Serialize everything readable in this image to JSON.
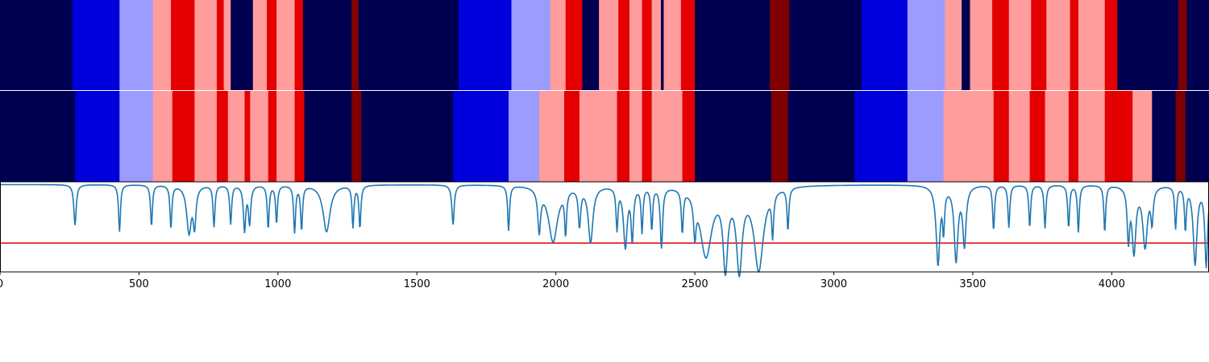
{
  "figure": {
    "x_range": [
      0,
      4350
    ],
    "xticks": [
      0,
      500,
      1000,
      1500,
      2000,
      2500,
      3000,
      3500,
      4000
    ],
    "xtick_labels": [
      "0",
      "500",
      "1000",
      "1500",
      "2000",
      "2500",
      "3000",
      "3500",
      "4000"
    ]
  },
  "colors": {
    "navy": "#000050",
    "blue": "#0000dc",
    "lightblue": "#9c9cff",
    "pink": "#ff9c9c",
    "red": "#e40000",
    "darkred": "#800000",
    "curve": "#1f77b4",
    "threshold": "#e00000"
  },
  "chart_data": [
    {
      "type": "heatmap",
      "x_range": [
        0,
        4350
      ],
      "segments": [
        [
          0,
          260,
          "navy"
        ],
        [
          260,
          430,
          "blue"
        ],
        [
          430,
          550,
          "lightblue"
        ],
        [
          550,
          615,
          "pink"
        ],
        [
          615,
          700,
          "red"
        ],
        [
          700,
          780,
          "pink"
        ],
        [
          780,
          805,
          "red"
        ],
        [
          805,
          830,
          "pink"
        ],
        [
          830,
          910,
          "navy"
        ],
        [
          910,
          960,
          "pink"
        ],
        [
          960,
          995,
          "red"
        ],
        [
          995,
          1060,
          "pink"
        ],
        [
          1060,
          1090,
          "red"
        ],
        [
          1090,
          1265,
          "navy"
        ],
        [
          1265,
          1290,
          "darkred"
        ],
        [
          1290,
          1650,
          "navy"
        ],
        [
          1650,
          1840,
          "blue"
        ],
        [
          1840,
          1980,
          "lightblue"
        ],
        [
          1980,
          2035,
          "pink"
        ],
        [
          2035,
          2095,
          "red"
        ],
        [
          2095,
          2155,
          "navy"
        ],
        [
          2155,
          2225,
          "pink"
        ],
        [
          2225,
          2265,
          "red"
        ],
        [
          2265,
          2310,
          "pink"
        ],
        [
          2310,
          2345,
          "red"
        ],
        [
          2345,
          2378,
          "pink"
        ],
        [
          2378,
          2388,
          "navy"
        ],
        [
          2388,
          2398,
          "pink"
        ],
        [
          2398,
          2450,
          "pink"
        ],
        [
          2450,
          2500,
          "red"
        ],
        [
          2500,
          2770,
          "navy"
        ],
        [
          2770,
          2840,
          "darkred"
        ],
        [
          2840,
          3100,
          "navy"
        ],
        [
          3100,
          3265,
          "blue"
        ],
        [
          3265,
          3400,
          "lightblue"
        ],
        [
          3400,
          3460,
          "pink"
        ],
        [
          3460,
          3490,
          "navy"
        ],
        [
          3490,
          3570,
          "pink"
        ],
        [
          3570,
          3630,
          "red"
        ],
        [
          3630,
          3710,
          "pink"
        ],
        [
          3710,
          3765,
          "red"
        ],
        [
          3765,
          3850,
          "pink"
        ],
        [
          3850,
          3880,
          "red"
        ],
        [
          3880,
          3975,
          "pink"
        ],
        [
          3975,
          4020,
          "red"
        ],
        [
          4020,
          4240,
          "navy"
        ],
        [
          4240,
          4270,
          "darkred"
        ],
        [
          4270,
          4350,
          "navy"
        ]
      ]
    },
    {
      "type": "heatmap",
      "x_range": [
        0,
        4350
      ],
      "segments": [
        [
          0,
          270,
          "navy"
        ],
        [
          270,
          430,
          "blue"
        ],
        [
          430,
          550,
          "lightblue"
        ],
        [
          550,
          620,
          "pink"
        ],
        [
          620,
          700,
          "red"
        ],
        [
          700,
          780,
          "pink"
        ],
        [
          780,
          820,
          "red"
        ],
        [
          820,
          880,
          "pink"
        ],
        [
          880,
          900,
          "red"
        ],
        [
          900,
          965,
          "pink"
        ],
        [
          965,
          995,
          "red"
        ],
        [
          995,
          1060,
          "pink"
        ],
        [
          1060,
          1095,
          "red"
        ],
        [
          1095,
          1265,
          "navy"
        ],
        [
          1265,
          1300,
          "darkred"
        ],
        [
          1300,
          1630,
          "navy"
        ],
        [
          1630,
          1830,
          "blue"
        ],
        [
          1830,
          1940,
          "lightblue"
        ],
        [
          1940,
          2030,
          "pink"
        ],
        [
          2030,
          2085,
          "red"
        ],
        [
          2085,
          2220,
          "pink"
        ],
        [
          2220,
          2265,
          "red"
        ],
        [
          2265,
          2310,
          "pink"
        ],
        [
          2310,
          2345,
          "red"
        ],
        [
          2345,
          2455,
          "pink"
        ],
        [
          2455,
          2500,
          "red"
        ],
        [
          2500,
          2775,
          "navy"
        ],
        [
          2775,
          2835,
          "darkred"
        ],
        [
          2835,
          3075,
          "navy"
        ],
        [
          3075,
          3265,
          "blue"
        ],
        [
          3265,
          3395,
          "lightblue"
        ],
        [
          3395,
          3575,
          "pink"
        ],
        [
          3575,
          3630,
          "red"
        ],
        [
          3630,
          3705,
          "pink"
        ],
        [
          3705,
          3760,
          "red"
        ],
        [
          3760,
          3845,
          "pink"
        ],
        [
          3845,
          3880,
          "red"
        ],
        [
          3880,
          3975,
          "pink"
        ],
        [
          3975,
          4075,
          "red"
        ],
        [
          4075,
          4145,
          "pink"
        ],
        [
          4145,
          4230,
          "navy"
        ],
        [
          4230,
          4265,
          "darkred"
        ],
        [
          4265,
          4350,
          "navy"
        ]
      ]
    },
    {
      "type": "line",
      "x_range": [
        0,
        4350
      ],
      "ylim": [
        0,
        1
      ],
      "baseline": 0.97,
      "threshold": 0.32,
      "dips": [
        [
          270,
          0.52,
          5
        ],
        [
          430,
          0.45,
          4
        ],
        [
          545,
          0.51,
          4
        ],
        [
          615,
          0.49,
          4
        ],
        [
          680,
          0.45,
          10
        ],
        [
          700,
          0.55,
          6
        ],
        [
          770,
          0.51,
          4
        ],
        [
          830,
          0.54,
          4
        ],
        [
          880,
          0.47,
          5
        ],
        [
          898,
          0.55,
          5
        ],
        [
          965,
          0.49,
          4
        ],
        [
          995,
          0.55,
          4
        ],
        [
          1060,
          0.45,
          4
        ],
        [
          1085,
          0.48,
          4
        ],
        [
          1175,
          0.45,
          15
        ],
        [
          1270,
          0.51,
          4
        ],
        [
          1295,
          0.5,
          4
        ],
        [
          1630,
          0.53,
          5
        ],
        [
          1830,
          0.47,
          4
        ],
        [
          1940,
          0.5,
          6
        ],
        [
          1990,
          0.35,
          20
        ],
        [
          2035,
          0.5,
          4
        ],
        [
          2085,
          0.55,
          5
        ],
        [
          2125,
          0.35,
          10
        ],
        [
          2220,
          0.51,
          4
        ],
        [
          2250,
          0.3,
          8
        ],
        [
          2275,
          0.4,
          5
        ],
        [
          2310,
          0.47,
          4
        ],
        [
          2345,
          0.5,
          4
        ],
        [
          2380,
          0.3,
          5
        ],
        [
          2455,
          0.5,
          4
        ],
        [
          2500,
          0.56,
          5
        ],
        [
          2540,
          0.2,
          25
        ],
        [
          2610,
          0.12,
          10
        ],
        [
          2660,
          0.08,
          12
        ],
        [
          2730,
          0.05,
          20
        ],
        [
          2780,
          0.5,
          4
        ],
        [
          2835,
          0.5,
          4
        ],
        [
          3375,
          0.1,
          8
        ],
        [
          3395,
          0.52,
          4
        ],
        [
          3440,
          0.15,
          8
        ],
        [
          3470,
          0.32,
          7
        ],
        [
          3575,
          0.47,
          4
        ],
        [
          3630,
          0.5,
          4
        ],
        [
          3705,
          0.5,
          4
        ],
        [
          3760,
          0.49,
          4
        ],
        [
          3845,
          0.5,
          4
        ],
        [
          3880,
          0.45,
          4
        ],
        [
          3975,
          0.45,
          4
        ],
        [
          4060,
          0.4,
          5
        ],
        [
          4080,
          0.25,
          8
        ],
        [
          4120,
          0.3,
          10
        ],
        [
          4145,
          0.6,
          5
        ],
        [
          4230,
          0.5,
          4
        ],
        [
          4265,
          0.5,
          4
        ],
        [
          4300,
          0.1,
          8
        ],
        [
          4340,
          0.08,
          6
        ]
      ]
    }
  ]
}
